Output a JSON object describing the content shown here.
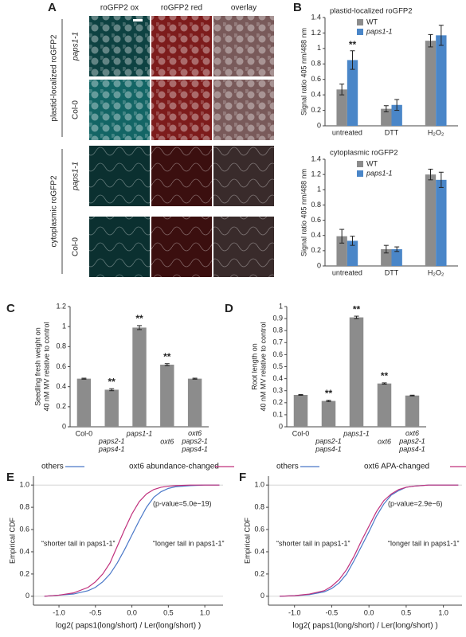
{
  "panel_a": {
    "panel": "A",
    "columns": [
      "roGFP2 ox",
      "roGFP2 red",
      "overlay"
    ],
    "groups": [
      {
        "label": "plastid-localized roGFP2",
        "rows": [
          "paps1-1",
          "Col-0"
        ]
      },
      {
        "label": "cytoplasmic roGFP2",
        "rows": [
          "paps1-1",
          "Col-0"
        ]
      }
    ]
  },
  "chart_data": [
    {
      "type": "grouped-bar",
      "panel": "B",
      "title": "plastid-localized roGFP2",
      "ylabel": "Signal ratio 405 nm/488 nm",
      "categories": [
        "untreated",
        "DTT",
        "H₂O₂"
      ],
      "series": [
        {
          "name": "WT",
          "color": "#8c8c8c",
          "values": [
            0.47,
            0.22,
            1.1
          ],
          "errors": [
            0.07,
            0.04,
            0.08
          ]
        },
        {
          "name": "paps1-1",
          "color": "#4a86c8",
          "values": [
            0.85,
            0.27,
            1.17
          ],
          "errors": [
            0.12,
            0.07,
            0.13
          ],
          "annotations": [
            "**",
            null,
            null
          ]
        }
      ],
      "ylim": [
        0,
        1.4
      ],
      "yticks": [
        0,
        0.2,
        0.4,
        0.6,
        0.8,
        1,
        1.2,
        1.4
      ]
    },
    {
      "type": "grouped-bar",
      "title": "cytoplasmic roGFP2",
      "ylabel": "Signal ratio 405 nm/488 nm",
      "categories": [
        "untreated",
        "DTT",
        "H₂O₂"
      ],
      "series": [
        {
          "name": "WT",
          "color": "#8c8c8c",
          "values": [
            0.39,
            0.22,
            1.2
          ],
          "errors": [
            0.09,
            0.05,
            0.07
          ]
        },
        {
          "name": "paps1-1",
          "color": "#4a86c8",
          "values": [
            0.33,
            0.22,
            1.13
          ],
          "errors": [
            0.06,
            0.03,
            0.1
          ]
        }
      ],
      "ylim": [
        0,
        1.4
      ],
      "yticks": [
        0,
        0.2,
        0.4,
        0.6,
        0.8,
        1,
        1.2,
        1.4
      ]
    },
    {
      "type": "bar",
      "panel": "C",
      "ylabel": [
        "Seedling fresh weight on",
        "40 nM MV relative to control"
      ],
      "categories": [
        "Col-0",
        "paps2-1 paps4-1",
        "paps1-1",
        "oxt6",
        "oxt6 paps2-1 paps4-1"
      ],
      "values": [
        0.48,
        0.37,
        0.99,
        0.62,
        0.48
      ],
      "errors": [
        0.005,
        0.01,
        0.02,
        0.01,
        0.005
      ],
      "annotations": [
        null,
        "**",
        "**",
        "**",
        null
      ],
      "color": "#8c8c8c",
      "ylim": [
        0,
        1.2
      ],
      "yticks": [
        0,
        0.2,
        0.4,
        0.6,
        0.8,
        1,
        1.2
      ]
    },
    {
      "type": "bar",
      "panel": "D",
      "ylabel": [
        "Root length on",
        "40 nM MV relative to control"
      ],
      "categories": [
        "Col-0",
        "paps2-1 paps4-1",
        "paps1-1",
        "oxt6",
        "oxt6 paps2-1 paps4-1"
      ],
      "values": [
        0.265,
        0.215,
        0.91,
        0.36,
        0.26
      ],
      "errors": [
        0.003,
        0.005,
        0.01,
        0.005,
        0.003
      ],
      "annotations": [
        null,
        "**",
        "**",
        "**",
        null
      ],
      "color": "#8c8c8c",
      "ylim": [
        0,
        1
      ],
      "yticks": [
        0,
        0.1,
        0.2,
        0.3,
        0.4,
        0.5,
        0.6,
        0.7,
        0.8,
        0.9,
        1
      ]
    },
    {
      "type": "line",
      "panel": "E",
      "ylabel": "Empirical CDF",
      "xlabel": "log2( paps1(long/short) / Ler(long/short) )",
      "annotations": [
        "(p-value=5.0e−19)",
        "“shorter tail in paps1-1”",
        "“longer tail in paps1-1”"
      ],
      "x": [
        -1.2,
        -1.0,
        -0.8,
        -0.6,
        -0.5,
        -0.4,
        -0.3,
        -0.2,
        -0.1,
        0,
        0.1,
        0.2,
        0.3,
        0.4,
        0.5,
        0.6,
        0.8,
        1.0,
        1.2
      ],
      "series": [
        {
          "name": "others",
          "color": "#4a78c8",
          "values": [
            0,
            0.01,
            0.02,
            0.05,
            0.08,
            0.13,
            0.2,
            0.3,
            0.42,
            0.55,
            0.68,
            0.8,
            0.89,
            0.94,
            0.97,
            0.985,
            0.995,
            1,
            1
          ]
        },
        {
          "name": "oxt6 abundance-changed",
          "color": "#c0307c",
          "values": [
            0,
            0.01,
            0.03,
            0.08,
            0.13,
            0.2,
            0.3,
            0.45,
            0.6,
            0.74,
            0.85,
            0.92,
            0.96,
            0.98,
            0.99,
            0.995,
            1,
            1,
            1
          ]
        }
      ],
      "xlim": [
        -1.35,
        1.25
      ],
      "ylim": [
        -0.08,
        1.08
      ],
      "xticks": [
        {
          "value": -1,
          "label": "-1.0"
        },
        {
          "value": -0.5,
          "label": "-0.5"
        },
        {
          "value": 0,
          "label": "0.0"
        },
        0.5,
        {
          "value": 1,
          "label": "1.0"
        }
      ],
      "yticks": [
        0,
        0.2,
        0.4,
        0.6,
        0.8,
        {
          "value": 1,
          "label": "1.0"
        }
      ]
    },
    {
      "type": "line",
      "panel": "F",
      "ylabel": "Empirical CDF",
      "xlabel": "log2( paps1(long/short) / Ler(long/short) )",
      "annotations": [
        "(p-value=2.9e−6)",
        "“shorter tail in paps1-1”",
        "“longer tail in paps1-1”"
      ],
      "x": [
        -1.2,
        -1.0,
        -0.8,
        -0.6,
        -0.5,
        -0.4,
        -0.3,
        -0.2,
        -0.1,
        0,
        0.1,
        0.2,
        0.3,
        0.4,
        0.5,
        0.6,
        0.8,
        1.0,
        1.2
      ],
      "series": [
        {
          "name": "others",
          "color": "#4a78c8",
          "values": [
            0,
            0.005,
            0.015,
            0.04,
            0.07,
            0.12,
            0.2,
            0.32,
            0.45,
            0.58,
            0.72,
            0.83,
            0.91,
            0.95,
            0.98,
            0.99,
            1,
            1,
            1
          ]
        },
        {
          "name": "oxt6 APA-changed",
          "color": "#c0307c",
          "values": [
            0,
            0.005,
            0.02,
            0.05,
            0.09,
            0.15,
            0.24,
            0.36,
            0.5,
            0.63,
            0.76,
            0.86,
            0.92,
            0.96,
            0.98,
            0.99,
            1,
            1,
            1
          ]
        }
      ],
      "xlim": [
        -1.35,
        1.25
      ],
      "ylim": [
        -0.08,
        1.08
      ],
      "xticks": [
        {
          "value": -1,
          "label": "-1.0"
        },
        {
          "value": -0.5,
          "label": "-0.5"
        },
        {
          "value": 0,
          "label": "0.0"
        },
        0.5,
        {
          "value": 1,
          "label": "1.0"
        }
      ],
      "yticks": [
        0,
        0.2,
        0.4,
        0.6,
        0.8,
        {
          "value": 1,
          "label": "1.0"
        }
      ]
    }
  ]
}
